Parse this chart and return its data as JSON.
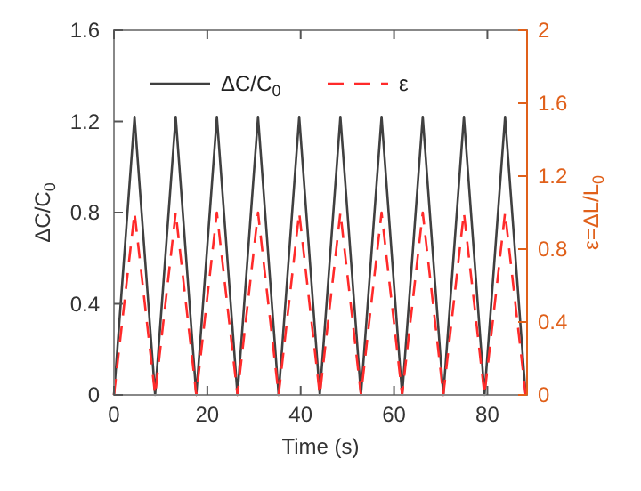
{
  "chart_data": {
    "type": "line",
    "xlabel": "Time (s)",
    "ylabel": "ΔC/C$_{0}$",
    "y2label": "ε=ΔL/L$_{0}$",
    "x": [
      0,
      4.41,
      8.82,
      13.23,
      17.64,
      22.05,
      26.46,
      30.87,
      35.28,
      39.69,
      44.1,
      48.51,
      52.92,
      57.33,
      61.74,
      66.15,
      70.56,
      74.97,
      79.38,
      83.79,
      88.2
    ],
    "series": [
      {
        "name": "ΔC/C$_{0}$",
        "color": "#404040",
        "line_style": "solid",
        "values": [
          0,
          1.22,
          0,
          1.22,
          0,
          1.22,
          0,
          1.22,
          0,
          1.22,
          0,
          1.22,
          0,
          1.22,
          0,
          1.22,
          0,
          1.22,
          0,
          1.22,
          0
        ]
      },
      {
        "name": "ε",
        "color": "#ff2a2a",
        "line_style": "dashed",
        "axis": "y2",
        "values": [
          0,
          1.0,
          0,
          1.0,
          0,
          1.0,
          0,
          1.0,
          0,
          1.0,
          0,
          1.0,
          0,
          1.0,
          0,
          1.0,
          0,
          1.0,
          0,
          1.0,
          0
        ]
      }
    ],
    "xlim": [
      0,
      88.5
    ],
    "xticks": [
      0,
      20,
      40,
      60,
      80
    ],
    "ylim": [
      0,
      1.6
    ],
    "yticks": [
      0,
      0.4,
      0.8,
      1.2,
      1.6
    ],
    "y2lim": [
      0,
      2
    ],
    "y2ticks": [
      0,
      0.4,
      0.8,
      1.2,
      1.6,
      2
    ],
    "legend": "top left",
    "grid": false
  }
}
